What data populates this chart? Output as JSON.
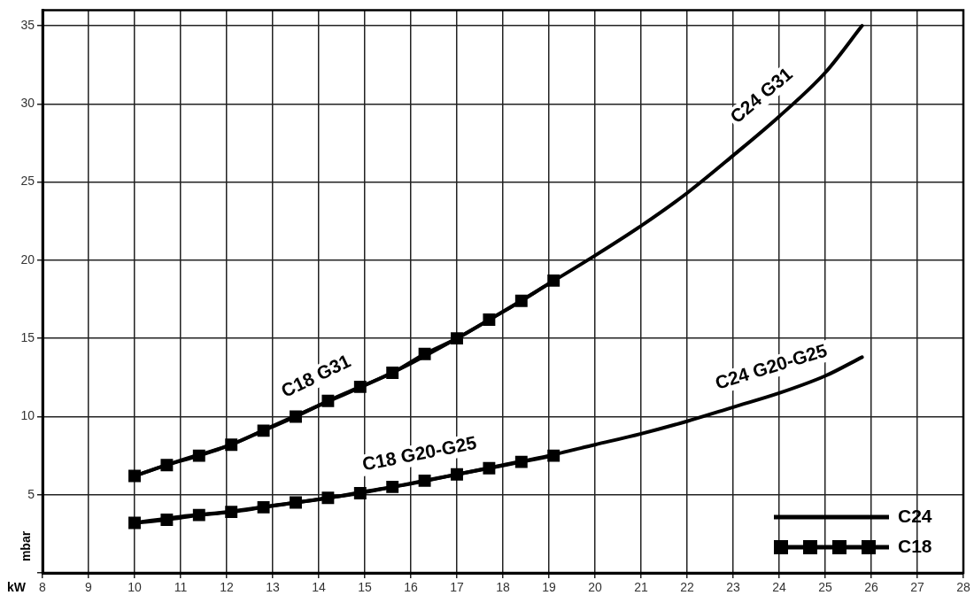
{
  "chart_data": {
    "type": "line",
    "xlabel": "kW",
    "ylabel": "mbar",
    "xlim": [
      8,
      28
    ],
    "xticks": [
      8,
      9,
      10,
      11,
      12,
      13,
      14,
      15,
      16,
      17,
      18,
      19,
      20,
      21,
      22,
      23,
      24,
      25,
      26,
      27,
      28
    ],
    "ylim": [
      0,
      36
    ],
    "yticks": [
      {
        "value": 0,
        "label": null
      },
      5,
      10,
      15,
      20,
      25,
      30,
      35
    ],
    "grid": true,
    "legend": "bottom right",
    "line_style": "solid",
    "series": [
      {
        "name": "C24",
        "color": "#000000",
        "marker": "none",
        "x": [
          10,
          11,
          12,
          13,
          14,
          15,
          16,
          17,
          18,
          19,
          20,
          21,
          22,
          23,
          24,
          25,
          25.8
        ],
        "values": [
          6.2,
          7.2,
          8.1,
          9.4,
          10.7,
          12.0,
          13.4,
          15.0,
          16.7,
          18.5,
          20.3,
          22.2,
          24.3,
          26.7,
          29.2,
          32.0,
          35.0
        ]
      },
      {
        "color": "#000000",
        "marker": "none",
        "x": [
          10,
          11,
          12,
          13,
          14,
          15,
          16,
          17,
          18,
          19,
          20,
          21,
          22,
          23,
          24,
          25,
          25.8
        ],
        "values": [
          3.2,
          3.6,
          3.9,
          4.3,
          4.7,
          5.2,
          5.7,
          6.3,
          6.9,
          7.5,
          8.2,
          8.9,
          9.7,
          10.6,
          11.5,
          12.6,
          13.8
        ]
      },
      {
        "name": "C18",
        "color": "#000000",
        "marker": "square",
        "x": [
          10,
          10.7,
          11.4,
          12.1,
          12.8,
          13.5,
          14.2,
          14.9,
          15.6,
          16.3,
          17,
          17.7,
          18.4,
          19.1
        ],
        "values": [
          6.2,
          6.9,
          7.5,
          8.2,
          9.1,
          10.0,
          11.0,
          11.9,
          12.8,
          14.0,
          15.0,
          16.2,
          17.4,
          18.7
        ]
      },
      {
        "color": "#000000",
        "marker": "square",
        "x": [
          10,
          10.7,
          11.4,
          12.1,
          12.8,
          13.5,
          14.2,
          14.9,
          15.6,
          16.3,
          17,
          17.7,
          18.4,
          19.1
        ],
        "values": [
          3.2,
          3.4,
          3.7,
          3.9,
          4.2,
          4.5,
          4.8,
          5.1,
          5.5,
          5.9,
          6.3,
          6.7,
          7.1,
          7.5
        ]
      }
    ],
    "annotations": [
      {
        "text": "C24 G31",
        "x": 24,
        "y": 29.2
      },
      {
        "text": "C18 G31",
        "x": 14.2,
        "y": 11.0
      },
      {
        "text": "C18 G20-G25",
        "x": 16.3,
        "y": 5.9
      },
      {
        "text": "C24 G20-G25",
        "x": 24,
        "y": 11.5
      }
    ]
  }
}
